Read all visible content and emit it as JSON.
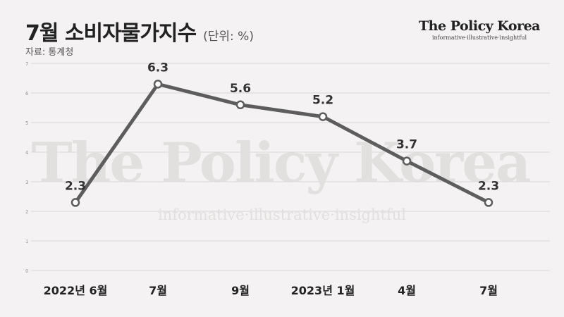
{
  "header": {
    "title": "7월 소비자물가지수",
    "unit": "(단위: %)",
    "source": "자료: 통계청"
  },
  "brand": {
    "name": "The Policy Korea",
    "tagline": "informative·illustrative·insightful"
  },
  "watermark": {
    "name": "The Policy Korea",
    "tagline": "informative·illustrative·insightful"
  },
  "colors": {
    "background": "#f4f2f2",
    "line": "#5d5d5d",
    "grid": "#d8d6d6",
    "marker_fill": "#ffffff",
    "watermark": "#e2dfdf"
  },
  "chart_data": {
    "type": "line",
    "categories": [
      "2022년 6월",
      "7월",
      "9월",
      "2023년 1월",
      "4월",
      "7월"
    ],
    "values": [
      2.3,
      6.3,
      5.6,
      5.2,
      3.7,
      2.3
    ],
    "data_labels": [
      "2.3",
      "6.3",
      "5.6",
      "5.2",
      "3.7",
      "2.3"
    ],
    "yticks": [
      "0",
      "1",
      "2",
      "3",
      "4",
      "5",
      "6",
      "7"
    ],
    "ylim": [
      0,
      7
    ],
    "grid": true,
    "title": "7월 소비자물가지수"
  }
}
